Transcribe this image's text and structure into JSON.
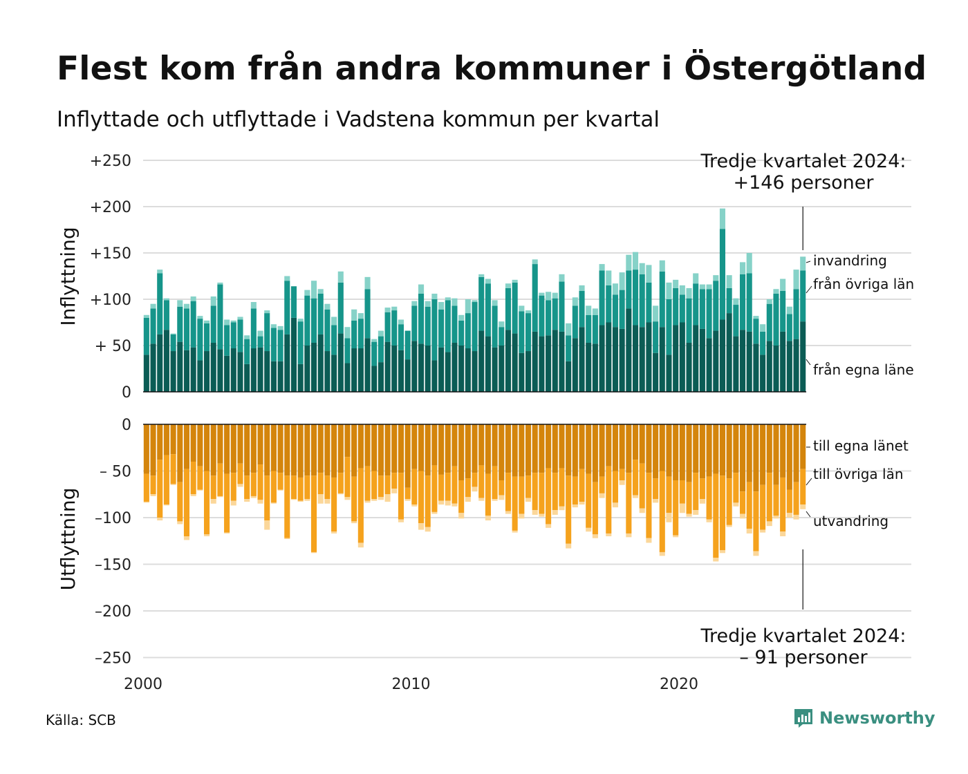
{
  "header": {
    "title": "Flest kom från andra kommuner i Östergötland",
    "subtitle": "Inflyttade och utflyttade i Vadstena kommun per kvartal"
  },
  "source": "Källa: SCB",
  "brand": "Newsworthy",
  "colors": {
    "egna_lan": "#0b5c55",
    "ovriga_lan": "#16958a",
    "invandring": "#86d2c8",
    "till_egna": "#d4850c",
    "till_ovriga": "#f5a21d",
    "utvandring": "#fbd79a",
    "brand": "#3a8f80"
  },
  "chart_data": [
    {
      "type": "bar",
      "stacked": true,
      "ylabel": "Inflyttning",
      "ylim": [
        0,
        250
      ],
      "yticks": [
        250,
        200,
        150,
        100,
        50,
        0
      ],
      "ytick_labels": [
        "+250",
        "+200",
        "+150",
        "+100",
        "+ 50",
        "0"
      ],
      "xticks": [
        2000,
        2010,
        2020
      ],
      "xtick_labels": [
        "2000",
        "2010",
        "2020"
      ],
      "grid": true,
      "x_start_year": 2000,
      "quarters": 99,
      "annotation": [
        "Tredje kvartalet 2024:",
        "+146 personer"
      ],
      "series": [
        {
          "name": "från egna läne",
          "values": [
            40,
            52,
            62,
            67,
            44,
            54,
            45,
            48,
            34,
            44,
            53,
            46,
            39,
            47,
            43,
            30,
            47,
            48,
            44,
            33,
            33,
            62,
            80,
            30,
            50,
            53,
            62,
            44,
            40,
            63,
            31,
            47,
            47,
            58,
            28,
            32,
            54,
            50,
            45,
            35,
            55,
            52,
            50,
            34,
            48,
            43,
            53,
            50,
            47,
            44,
            66,
            60,
            48,
            50,
            67,
            63,
            42,
            44,
            65,
            60,
            61,
            67,
            65,
            33,
            58,
            70,
            53,
            52,
            72,
            75,
            70,
            68,
            90,
            72,
            70,
            75,
            42,
            70,
            40,
            72,
            75,
            53,
            72,
            68,
            58,
            66,
            78,
            85,
            60,
            67,
            65,
            52,
            40,
            55,
            50,
            65,
            55,
            57,
            76
          ]
        },
        {
          "name": "från övriga län",
          "values": [
            40,
            38,
            66,
            32,
            18,
            38,
            45,
            50,
            45,
            30,
            40,
            70,
            33,
            28,
            35,
            27,
            43,
            12,
            41,
            36,
            34,
            58,
            34,
            46,
            54,
            48,
            44,
            45,
            32,
            55,
            27,
            30,
            32,
            53,
            26,
            28,
            32,
            38,
            28,
            31,
            38,
            54,
            42,
            66,
            41,
            56,
            40,
            27,
            38,
            53,
            58,
            57,
            45,
            20,
            45,
            55,
            45,
            41,
            73,
            44,
            38,
            34,
            54,
            28,
            35,
            39,
            30,
            31,
            59,
            40,
            35,
            42,
            41,
            60,
            57,
            43,
            34,
            60,
            60,
            40,
            30,
            48,
            45,
            43,
            53,
            54,
            98,
            27,
            34,
            60,
            63,
            27,
            25,
            40,
            56,
            44,
            29,
            54,
            55
          ]
        },
        {
          "name": "invandring",
          "values": [
            3,
            5,
            4,
            2,
            1,
            7,
            5,
            5,
            3,
            3,
            10,
            2,
            6,
            2,
            3,
            4,
            7,
            6,
            3,
            4,
            4,
            5,
            0,
            3,
            6,
            19,
            5,
            6,
            9,
            12,
            12,
            12,
            6,
            13,
            3,
            6,
            5,
            4,
            5,
            0,
            5,
            10,
            6,
            6,
            8,
            3,
            8,
            6,
            15,
            2,
            3,
            5,
            6,
            6,
            5,
            3,
            6,
            3,
            5,
            3,
            9,
            6,
            8,
            13,
            9,
            6,
            10,
            7,
            7,
            16,
            12,
            19,
            17,
            19,
            12,
            19,
            17,
            12,
            18,
            9,
            10,
            11,
            11,
            5,
            5,
            6,
            22,
            14,
            7,
            13,
            22,
            3,
            8,
            5,
            5,
            13,
            8,
            21,
            15
          ]
        }
      ]
    },
    {
      "type": "bar",
      "stacked": true,
      "ylabel": "Utflyttning",
      "ylim": [
        -250,
        0
      ],
      "yticks": [
        0,
        -50,
        -100,
        -150,
        -200,
        -250
      ],
      "ytick_labels": [
        "0",
        "– 50",
        "–100",
        "–150",
        "–200",
        "–250"
      ],
      "grid": true,
      "x_start_year": 2000,
      "quarters": 99,
      "annotation": [
        "Tredje kvartalet 2024:",
        "– 91 personer"
      ],
      "series": [
        {
          "name": "till egna länet",
          "values": [
            -53,
            -55,
            -38,
            -33,
            -32,
            -62,
            -48,
            -40,
            -45,
            -50,
            -55,
            -42,
            -53,
            -52,
            -42,
            -55,
            -52,
            -43,
            -55,
            -50,
            -52,
            -55,
            -55,
            -57,
            -55,
            -55,
            -52,
            -55,
            -57,
            -52,
            -35,
            -56,
            -47,
            -45,
            -50,
            -55,
            -55,
            -52,
            -52,
            -68,
            -48,
            -50,
            -55,
            -44,
            -54,
            -52,
            -45,
            -60,
            -58,
            -52,
            -44,
            -53,
            -45,
            -60,
            -52,
            -56,
            -56,
            -55,
            -52,
            -52,
            -47,
            -52,
            -47,
            -55,
            -56,
            -48,
            -53,
            -62,
            -56,
            -45,
            -50,
            -48,
            -52,
            -38,
            -42,
            -52,
            -58,
            -50,
            -56,
            -60,
            -60,
            -62,
            -52,
            -58,
            -56,
            -53,
            -55,
            -58,
            -52,
            -72,
            -62,
            -72,
            -65,
            -52,
            -65,
            -57,
            -70,
            -62,
            -48
          ]
        },
        {
          "name": "till övriga län",
          "values": [
            -30,
            -20,
            -62,
            -53,
            -32,
            -42,
            -72,
            -35,
            -25,
            -68,
            -25,
            -35,
            -63,
            -30,
            -22,
            -25,
            -25,
            -38,
            -48,
            -34,
            -18,
            -67,
            -25,
            -25,
            -25,
            -82,
            -23,
            -25,
            -58,
            -22,
            -43,
            -48,
            -80,
            -37,
            -30,
            -23,
            -20,
            -17,
            -50,
            -12,
            -38,
            -56,
            -55,
            -50,
            -28,
            -30,
            -40,
            -35,
            -20,
            -15,
            -35,
            -45,
            -35,
            -16,
            -41,
            -58,
            -40,
            -24,
            -40,
            -44,
            -60,
            -40,
            -41,
            -73,
            -30,
            -35,
            -58,
            -56,
            -18,
            -72,
            -34,
            -12,
            -65,
            -38,
            -48,
            -70,
            -22,
            -87,
            -39,
            -59,
            -25,
            -34,
            -40,
            -22,
            -46,
            -90,
            -80,
            -50,
            -32,
            -24,
            -50,
            -64,
            -48,
            -52,
            -33,
            -58,
            -25,
            -35,
            -38
          ]
        },
        {
          "name": "utvandring",
          "values": [
            -1,
            -2,
            -3,
            -1,
            -1,
            -3,
            -4,
            -2,
            -1,
            -2,
            -5,
            -1,
            -1,
            -5,
            -3,
            -3,
            -2,
            -4,
            -10,
            -1,
            -1,
            -1,
            -1,
            -1,
            -2,
            -1,
            -10,
            -5,
            -2,
            -1,
            -3,
            -2,
            -5,
            -2,
            -2,
            -3,
            -8,
            -5,
            -3,
            -2,
            -2,
            -7,
            -5,
            -2,
            -4,
            -5,
            -3,
            -6,
            -5,
            -5,
            -3,
            -5,
            -2,
            -5,
            -3,
            -2,
            -5,
            -4,
            -5,
            -3,
            -4,
            -5,
            -4,
            -5,
            -3,
            -3,
            -4,
            -4,
            -5,
            -3,
            -5,
            -5,
            -4,
            -3,
            -5,
            -5,
            -4,
            -4,
            -10,
            -2,
            -10,
            -3,
            -5,
            -5,
            -3,
            -4,
            -3,
            -2,
            -4,
            -5,
            -5,
            -5,
            -3,
            -5,
            -3,
            -5,
            -5,
            -5,
            -5
          ]
        }
      ]
    }
  ]
}
